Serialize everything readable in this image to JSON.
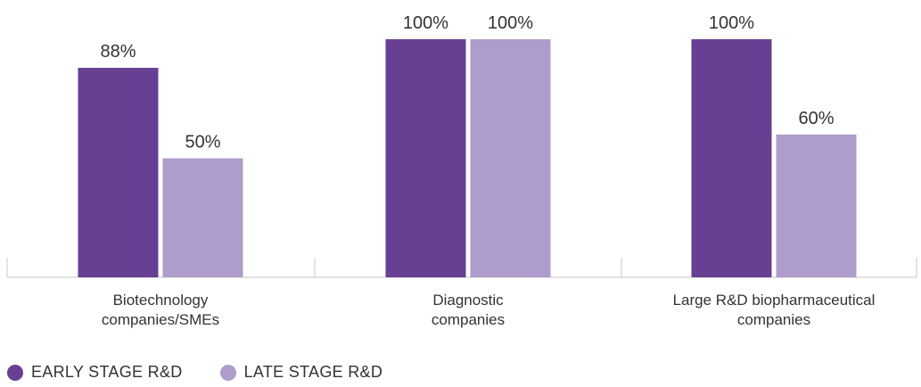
{
  "chart_data": {
    "type": "bar",
    "categories": [
      [
        "Biotechnology",
        "companies/SMEs"
      ],
      [
        "Diagnostic",
        "companies"
      ],
      [
        "Large R&D biopharmaceutical",
        "companies"
      ]
    ],
    "series": [
      {
        "name": "EARLY STAGE R&D",
        "values": [
          88,
          100,
          100
        ],
        "labels": [
          "88%",
          "100%",
          "100%"
        ],
        "color": "#673F93"
      },
      {
        "name": "LATE STAGE R&D",
        "values": [
          50,
          100,
          60
        ],
        "labels": [
          "50%",
          "100%",
          "60%"
        ],
        "color": "#AD9CCC"
      }
    ],
    "ylim": [
      0,
      100
    ],
    "value_unit": "%",
    "grid": false,
    "legend_position": "bottom-left",
    "title": "",
    "xlabel": "",
    "ylabel": ""
  },
  "colors": {
    "axis": "#c8c8c8",
    "text": "#333333"
  }
}
